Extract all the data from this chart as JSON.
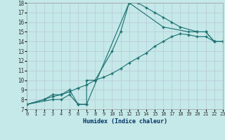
{
  "xlabel": "Humidex (Indice chaleur)",
  "bg_color": "#c5e8e8",
  "grid_color": "#b8c8d8",
  "line_color": "#1a7070",
  "line1_x": [
    0,
    2,
    3,
    4,
    5,
    6,
    7,
    7,
    8,
    10,
    11,
    12,
    13,
    14,
    15,
    16,
    17,
    18,
    20,
    21,
    22
  ],
  "line1_y": [
    7.5,
    8.0,
    8.5,
    8.5,
    9.0,
    7.5,
    7.5,
    10.0,
    10.0,
    13.0,
    15.0,
    18.0,
    18.0,
    17.5,
    17.0,
    16.5,
    16.0,
    15.5,
    15.0,
    15.0,
    14.0
  ],
  "line2_x": [
    0,
    2,
    3,
    4,
    5,
    6,
    7,
    8,
    9,
    10,
    11,
    12,
    13,
    14,
    15,
    16,
    17,
    18,
    19,
    20,
    21,
    22,
    23
  ],
  "line2_y": [
    7.5,
    8.0,
    8.3,
    8.5,
    8.8,
    9.2,
    9.5,
    10.0,
    10.3,
    10.7,
    11.2,
    11.8,
    12.3,
    12.8,
    13.5,
    14.0,
    14.5,
    14.8,
    14.7,
    14.5,
    14.5,
    14.0,
    14.0
  ],
  "line3_x": [
    0,
    3,
    4,
    5,
    6,
    7,
    12,
    16,
    19,
    20,
    21,
    22,
    23
  ],
  "line3_y": [
    7.5,
    8.0,
    8.0,
    8.5,
    7.5,
    7.5,
    18.0,
    15.5,
    15.0,
    15.0,
    15.0,
    14.0,
    14.0
  ],
  "xlim": [
    0,
    23
  ],
  "ylim": [
    7,
    18
  ],
  "xticks": [
    0,
    1,
    2,
    3,
    4,
    5,
    6,
    7,
    8,
    9,
    10,
    11,
    12,
    13,
    14,
    15,
    16,
    17,
    18,
    19,
    20,
    21,
    22,
    23
  ],
  "yticks": [
    7,
    8,
    9,
    10,
    11,
    12,
    13,
    14,
    15,
    16,
    17,
    18
  ]
}
